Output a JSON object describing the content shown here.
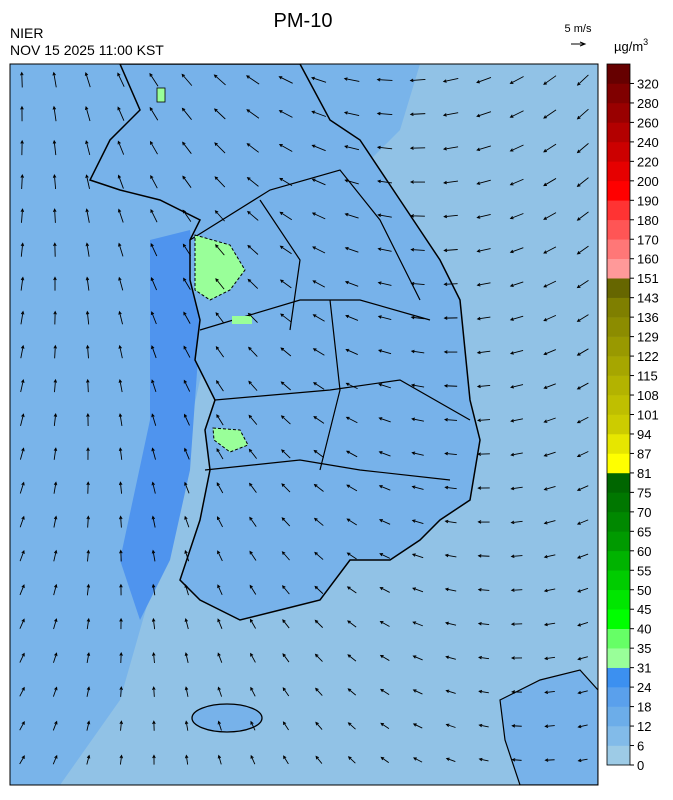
{
  "header": {
    "title": "PM-10",
    "agency": "NIER",
    "timestamp": "NOV 15 2025 11:00 KST",
    "wind_scale": "5 m/s"
  },
  "legend": {
    "unit": "µg/m",
    "unit_sup": "3",
    "ticks": [
      0,
      6,
      12,
      18,
      24,
      31,
      35,
      40,
      45,
      50,
      55,
      60,
      65,
      70,
      75,
      81,
      87,
      94,
      101,
      108,
      115,
      122,
      129,
      136,
      143,
      151,
      160,
      170,
      180,
      190,
      200,
      220,
      240,
      260,
      280,
      320
    ],
    "colors": [
      "#9dcbe6",
      "#82bbe9",
      "#6cade9",
      "#5aa0ec",
      "#3c90f0",
      "#99ff99",
      "#66ff66",
      "#00ff00",
      "#00e600",
      "#00cc00",
      "#00b300",
      "#009a00",
      "#008800",
      "#007700",
      "#006600",
      "#ffff00",
      "#e6e600",
      "#cccc00",
      "#bfbf00",
      "#b3b300",
      "#a6a600",
      "#999900",
      "#8c8c00",
      "#7f7f00",
      "#666600",
      "#ff9999",
      "#ff7777",
      "#ff5555",
      "#ff3333",
      "#ff0000",
      "#e60000",
      "#cc0000",
      "#b30000",
      "#990000",
      "#800000",
      "#660000"
    ]
  }
}
